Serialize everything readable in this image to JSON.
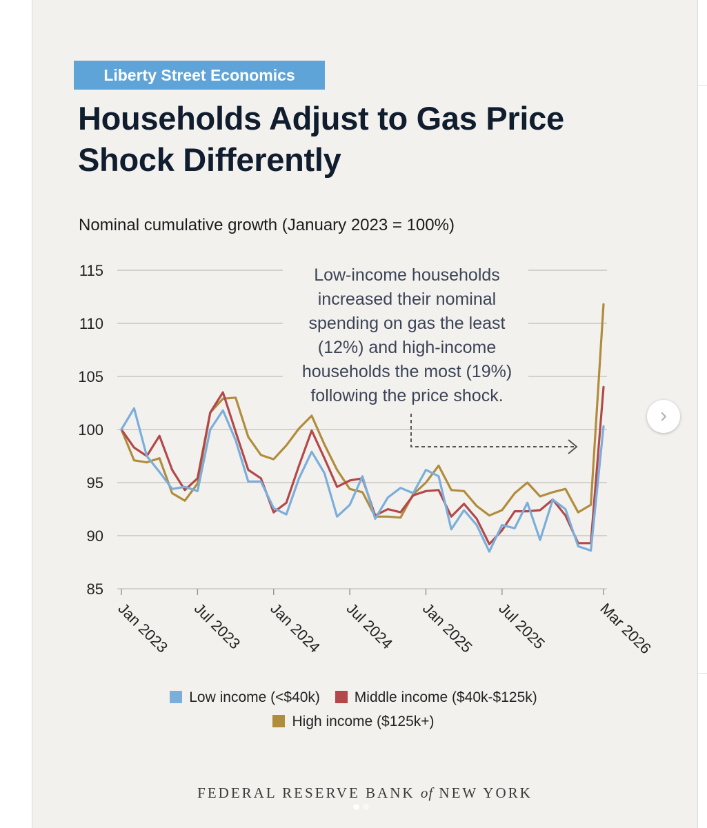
{
  "header": {
    "badge": "Liberty Street Economics",
    "title": "Households Adjust to Gas Price Shock Differently"
  },
  "chart_data": {
    "type": "line",
    "title": "Households Adjust to Gas Price Shock Differently",
    "ylabel": "Nominal cumulative growth (January 2023 = 100%)",
    "xlabel": "",
    "ylim": [
      85,
      115
    ],
    "yticks": [
      85,
      90,
      95,
      100,
      105,
      110,
      115
    ],
    "x_start": "2023-01",
    "x_end": "2026-03",
    "xticks": [
      {
        "date": "2023-01",
        "label": "Jan 2023"
      },
      {
        "date": "2023-07",
        "label": "Jul 2023"
      },
      {
        "date": "2024-01",
        "label": "Jan 2024"
      },
      {
        "date": "2024-07",
        "label": "Jul 2024"
      },
      {
        "date": "2025-01",
        "label": "Jan 2025"
      },
      {
        "date": "2025-07",
        "label": "Jul 2025"
      },
      {
        "date": "2026-03",
        "label": "Mar 2026"
      }
    ],
    "x": [
      "2023-01",
      "2023-02",
      "2023-03",
      "2023-04",
      "2023-05",
      "2023-06",
      "2023-07",
      "2023-08",
      "2023-09",
      "2023-10",
      "2023-11",
      "2023-12",
      "2024-01",
      "2024-02",
      "2024-03",
      "2024-04",
      "2024-05",
      "2024-06",
      "2024-07",
      "2024-08",
      "2024-09",
      "2024-10",
      "2024-11",
      "2024-12",
      "2025-01",
      "2025-02",
      "2025-03",
      "2025-04",
      "2025-05",
      "2025-06",
      "2025-07",
      "2025-08",
      "2025-09",
      "2025-10",
      "2025-11",
      "2025-12",
      "2026-01",
      "2026-02",
      "2026-03"
    ],
    "series": [
      {
        "name": "Low income (<$40k)",
        "color": "#7aaedb",
        "values": [
          100,
          102,
          97.5,
          96,
          94.4,
          94.6,
          94.2,
          100,
          101.8,
          99,
          95.1,
          95.1,
          92.6,
          92,
          95.4,
          97.9,
          95.9,
          91.8,
          92.9,
          95.6,
          91.6,
          93.6,
          94.5,
          94,
          96.2,
          95.6,
          90.6,
          92.4,
          91,
          88.5,
          91,
          90.7,
          93.1,
          89.6,
          93.4,
          92.5,
          89,
          88.6,
          100.3
        ]
      },
      {
        "name": "Middle income ($40k-$125k)",
        "color": "#b2484a",
        "values": [
          100,
          98.3,
          97.5,
          99.4,
          96.2,
          94.3,
          95.4,
          101.6,
          103.5,
          99.8,
          96.2,
          95.4,
          92.2,
          93.1,
          96.6,
          99.9,
          97.3,
          94.6,
          95.2,
          95.4,
          91.9,
          92.5,
          92.2,
          93.8,
          94.2,
          94.3,
          91.8,
          93,
          91.6,
          89.2,
          90.5,
          92.3,
          92.3,
          92.4,
          93.4,
          91.9,
          89.3,
          89.3,
          104
        ]
      },
      {
        "name": "High income ($125k+)",
        "color": "#b08d3d",
        "values": [
          100,
          97.1,
          96.9,
          97.3,
          94,
          93.3,
          94.9,
          101.6,
          102.9,
          103,
          99.3,
          97.6,
          97.2,
          98.5,
          100.1,
          101.3,
          98.6,
          96.2,
          94.4,
          94.1,
          91.8,
          91.8,
          91.7,
          93.9,
          95,
          96.6,
          94.3,
          94.2,
          92.8,
          91.9,
          92.4,
          94,
          95,
          93.7,
          94.1,
          94.4,
          92.2,
          92.9,
          111.8
        ]
      }
    ],
    "annotation": "Low-income households increased their nominal spending on gas the least (12%) and high-income households the most (19%) following the price shock.",
    "legend_position": "bottom-center",
    "grid": "horizontal"
  },
  "footer": {
    "org_left": "FEDERAL RESERVE BANK",
    "org_of": "of",
    "org_right": "NEW YORK"
  },
  "carousel": {
    "next_glyph": "›"
  }
}
